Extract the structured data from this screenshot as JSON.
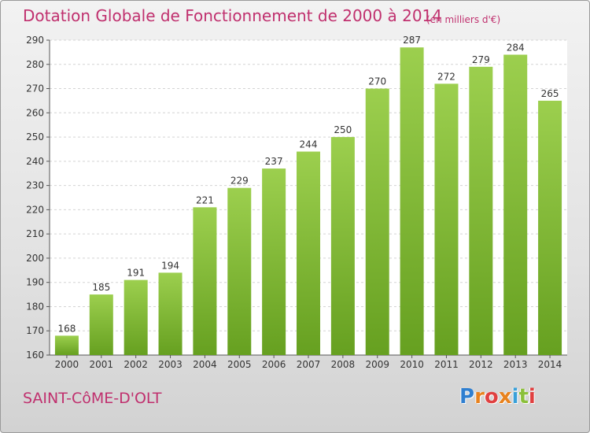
{
  "title": "Dotation Globale de Fonctionnement de 2000 à 2014",
  "subtitle": "(en milliers d'€)",
  "commune": "SAINT-CôME-D'OLT",
  "logo": {
    "letters": [
      "P",
      "r",
      "o",
      "x",
      "i",
      "t",
      "i"
    ],
    "colors": [
      "#2f7fd0",
      "#e8821e",
      "#e04040",
      "#e8821e",
      "#3aa0d8",
      "#8bc03a",
      "#e04040"
    ]
  },
  "chart_data": {
    "type": "bar",
    "categories": [
      "2000",
      "2001",
      "2002",
      "2003",
      "2004",
      "2005",
      "2006",
      "2007",
      "2008",
      "2009",
      "2010",
      "2011",
      "2012",
      "2013",
      "2014"
    ],
    "values": [
      168,
      185,
      191,
      194,
      221,
      229,
      237,
      244,
      250,
      270,
      287,
      272,
      279,
      284,
      265
    ],
    "ylim": [
      160,
      290
    ],
    "yticks": [
      160,
      170,
      180,
      190,
      200,
      210,
      220,
      230,
      240,
      250,
      260,
      270,
      280,
      290
    ],
    "grid": true,
    "bar_color_top": "#9ccf4e",
    "bar_color_bottom": "#66a020"
  }
}
